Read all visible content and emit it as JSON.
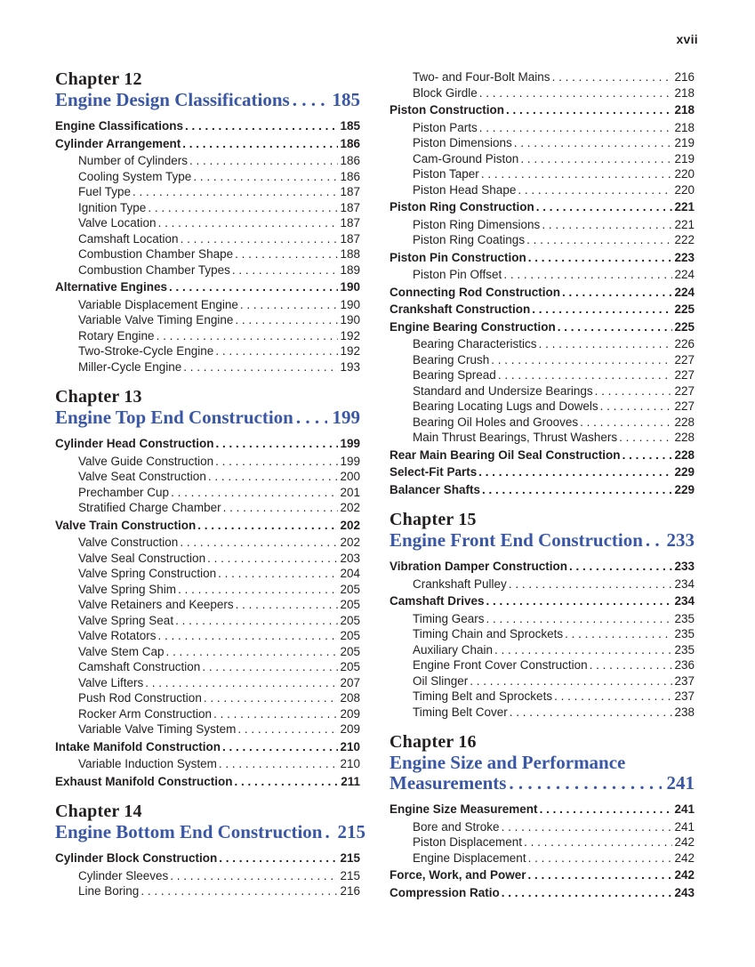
{
  "page": {
    "folio": "xvii"
  },
  "accent_color": "#3a57a5",
  "columns": {
    "left": {
      "blocks": [
        {
          "chapter_label": "Chapter 12",
          "title_lines": [
            "Engine Design Classifications"
          ],
          "page": "185",
          "entries": [
            {
              "text": "Engine Classifications",
              "page": "185",
              "level": 1
            },
            {
              "text": "Cylinder Arrangement",
              "page": "186",
              "level": 1
            },
            {
              "text": "Number of Cylinders",
              "page": "186",
              "level": 2
            },
            {
              "text": "Cooling System Type",
              "page": "186",
              "level": 2
            },
            {
              "text": "Fuel Type",
              "page": "187",
              "level": 2
            },
            {
              "text": "Ignition Type",
              "page": "187",
              "level": 2
            },
            {
              "text": "Valve Location",
              "page": "187",
              "level": 2
            },
            {
              "text": "Camshaft Location",
              "page": "187",
              "level": 2
            },
            {
              "text": "Combustion Chamber Shape",
              "page": "188",
              "level": 2
            },
            {
              "text": "Combustion Chamber Types",
              "page": "189",
              "level": 2
            },
            {
              "text": "Alternative Engines",
              "page": "190",
              "level": 1
            },
            {
              "text": "Variable Displacement Engine",
              "page": "190",
              "level": 2
            },
            {
              "text": "Variable Valve Timing Engine",
              "page": "190",
              "level": 2
            },
            {
              "text": "Rotary Engine",
              "page": "192",
              "level": 2
            },
            {
              "text": "Two-Stroke-Cycle Engine",
              "page": "192",
              "level": 2
            },
            {
              "text": "Miller-Cycle Engine",
              "page": "193",
              "level": 2
            }
          ]
        },
        {
          "chapter_label": "Chapter 13",
          "title_lines": [
            "Engine Top End Construction"
          ],
          "page": "199",
          "entries": [
            {
              "text": "Cylinder Head Construction",
              "page": "199",
              "level": 1
            },
            {
              "text": "Valve Guide Construction",
              "page": "199",
              "level": 2
            },
            {
              "text": "Valve Seat Construction",
              "page": "200",
              "level": 2
            },
            {
              "text": "Prechamber Cup",
              "page": "201",
              "level": 2
            },
            {
              "text": "Stratified Charge Chamber",
              "page": "202",
              "level": 2
            },
            {
              "text": "Valve Train Construction",
              "page": "202",
              "level": 1
            },
            {
              "text": "Valve Construction",
              "page": "202",
              "level": 2
            },
            {
              "text": "Valve Seal Construction",
              "page": "203",
              "level": 2
            },
            {
              "text": "Valve Spring Construction",
              "page": "204",
              "level": 2
            },
            {
              "text": "Valve Spring Shim",
              "page": "205",
              "level": 2
            },
            {
              "text": "Valve Retainers and Keepers",
              "page": "205",
              "level": 2
            },
            {
              "text": "Valve Spring Seat",
              "page": "205",
              "level": 2
            },
            {
              "text": "Valve Rotators",
              "page": "205",
              "level": 2
            },
            {
              "text": "Valve Stem Cap",
              "page": "205",
              "level": 2
            },
            {
              "text": "Camshaft Construction",
              "page": "205",
              "level": 2
            },
            {
              "text": "Valve Lifters",
              "page": "207",
              "level": 2
            },
            {
              "text": "Push Rod Construction",
              "page": "208",
              "level": 2
            },
            {
              "text": "Rocker Arm Construction",
              "page": "209",
              "level": 2
            },
            {
              "text": "Variable Valve Timing System",
              "page": "209",
              "level": 2
            },
            {
              "text": "Intake Manifold Construction",
              "page": "210",
              "level": 1
            },
            {
              "text": "Variable Induction System",
              "page": "210",
              "level": 2
            },
            {
              "text": "Exhaust Manifold Construction",
              "page": "211",
              "level": 1
            }
          ]
        },
        {
          "chapter_label": "Chapter 14",
          "title_lines": [
            "Engine Bottom End Construction"
          ],
          "page": "215",
          "entries": [
            {
              "text": "Cylinder Block Construction",
              "page": "215",
              "level": 1
            },
            {
              "text": "Cylinder Sleeves",
              "page": "215",
              "level": 2
            },
            {
              "text": "Line Boring",
              "page": "216",
              "level": 2
            }
          ]
        }
      ]
    },
    "right": {
      "blocks": [
        {
          "chapter_label": null,
          "title_lines": null,
          "page": null,
          "entries": [
            {
              "text": "Two- and Four-Bolt Mains",
              "page": "216",
              "level": 2
            },
            {
              "text": "Block Girdle",
              "page": "218",
              "level": 2
            },
            {
              "text": "Piston Construction",
              "page": "218",
              "level": 1
            },
            {
              "text": "Piston Parts",
              "page": "218",
              "level": 2
            },
            {
              "text": "Piston Dimensions",
              "page": "219",
              "level": 2
            },
            {
              "text": "Cam-Ground Piston",
              "page": "219",
              "level": 2
            },
            {
              "text": "Piston Taper",
              "page": "220",
              "level": 2
            },
            {
              "text": "Piston Head Shape",
              "page": "220",
              "level": 2
            },
            {
              "text": "Piston Ring Construction",
              "page": "221",
              "level": 1
            },
            {
              "text": "Piston Ring Dimensions",
              "page": "221",
              "level": 2
            },
            {
              "text": "Piston Ring Coatings",
              "page": "222",
              "level": 2
            },
            {
              "text": "Piston Pin Construction",
              "page": "223",
              "level": 1
            },
            {
              "text": "Piston Pin Offset",
              "page": "224",
              "level": 2
            },
            {
              "text": "Connecting Rod Construction",
              "page": "224",
              "level": 1
            },
            {
              "text": "Crankshaft Construction",
              "page": "225",
              "level": 1
            },
            {
              "text": "Engine Bearing Construction",
              "page": "225",
              "level": 1
            },
            {
              "text": "Bearing Characteristics",
              "page": "226",
              "level": 2
            },
            {
              "text": "Bearing Crush",
              "page": "227",
              "level": 2
            },
            {
              "text": "Bearing Spread",
              "page": "227",
              "level": 2
            },
            {
              "text": "Standard and Undersize Bearings",
              "page": "227",
              "level": 2
            },
            {
              "text": "Bearing Locating Lugs and Dowels",
              "page": "227",
              "level": 2
            },
            {
              "text": "Bearing Oil Holes and Grooves",
              "page": "228",
              "level": 2
            },
            {
              "text": "Main Thrust Bearings, Thrust Washers",
              "page": "228",
              "level": 2
            },
            {
              "text": "Rear Main Bearing Oil Seal Construction",
              "page": "228",
              "level": 1
            },
            {
              "text": "Select-Fit Parts",
              "page": "229",
              "level": 1
            },
            {
              "text": "Balancer Shafts",
              "page": "229",
              "level": 1
            }
          ]
        },
        {
          "chapter_label": "Chapter 15",
          "title_lines": [
            "Engine Front End Construction"
          ],
          "page": "233",
          "entries": [
            {
              "text": "Vibration Damper Construction",
              "page": "233",
              "level": 1
            },
            {
              "text": "Crankshaft Pulley",
              "page": "234",
              "level": 2
            },
            {
              "text": "Camshaft Drives",
              "page": "234",
              "level": 1
            },
            {
              "text": "Timing Gears",
              "page": "235",
              "level": 2
            },
            {
              "text": "Timing Chain and Sprockets",
              "page": "235",
              "level": 2
            },
            {
              "text": "Auxiliary Chain",
              "page": "235",
              "level": 2
            },
            {
              "text": "Engine Front Cover Construction",
              "page": "236",
              "level": 2
            },
            {
              "text": "Oil Slinger",
              "page": "237",
              "level": 2
            },
            {
              "text": "Timing Belt and Sprockets",
              "page": "237",
              "level": 2
            },
            {
              "text": "Timing Belt Cover",
              "page": "238",
              "level": 2
            }
          ]
        },
        {
          "chapter_label": "Chapter 16",
          "title_lines": [
            "Engine Size and Performance",
            "Measurements"
          ],
          "page": "241",
          "entries": [
            {
              "text": "Engine Size Measurement",
              "page": "241",
              "level": 1
            },
            {
              "text": "Bore and Stroke",
              "page": "241",
              "level": 2
            },
            {
              "text": "Piston Displacement",
              "page": "242",
              "level": 2
            },
            {
              "text": "Engine Displacement",
              "page": "242",
              "level": 2
            },
            {
              "text": "Force, Work, and Power",
              "page": "242",
              "level": 1
            },
            {
              "text": "Compression Ratio",
              "page": "243",
              "level": 1
            }
          ]
        }
      ]
    }
  }
}
